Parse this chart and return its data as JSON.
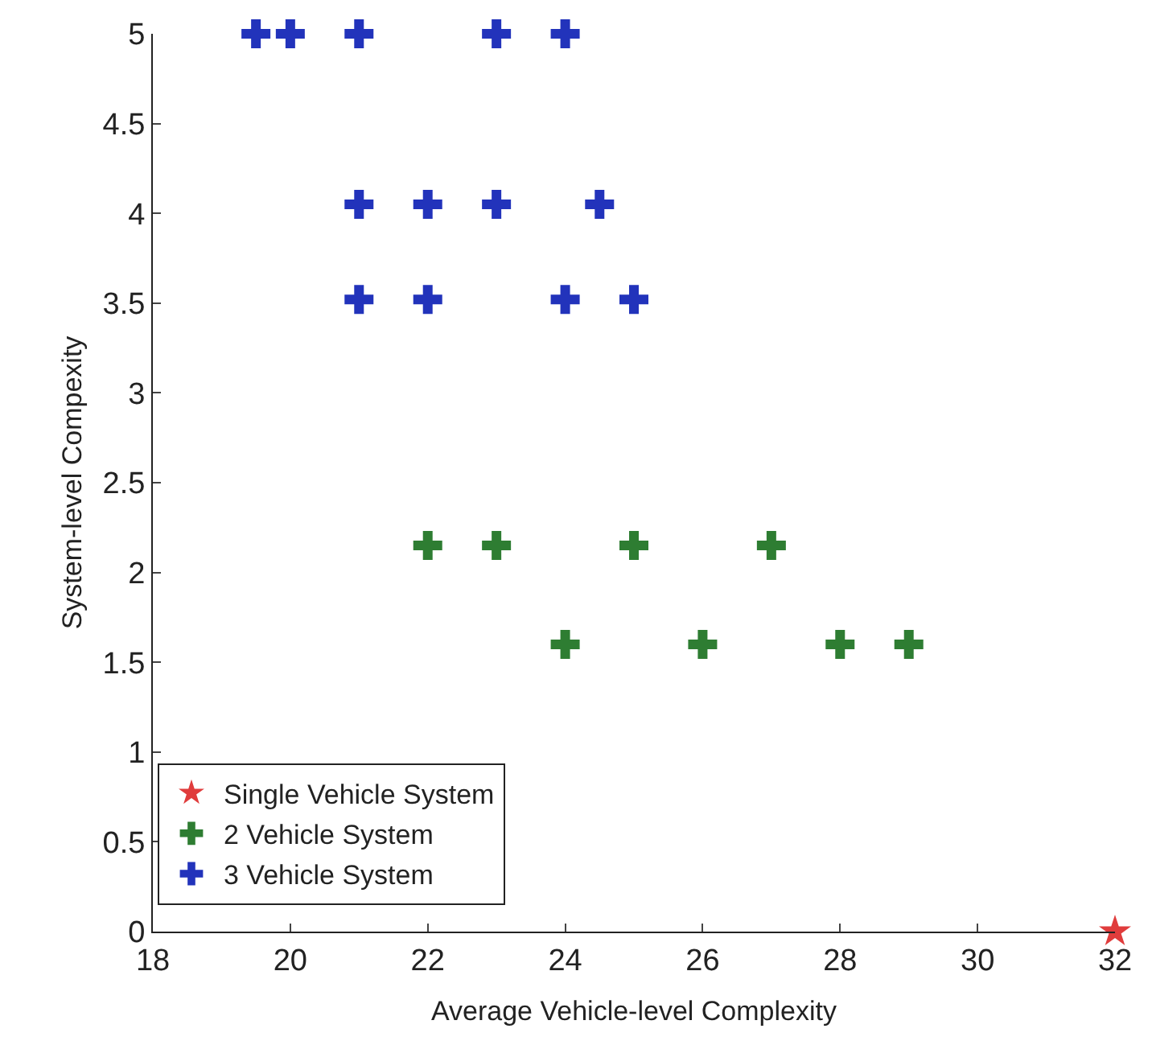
{
  "chart_data": {
    "type": "scatter",
    "xlabel": "Average Vehicle-level Complexity",
    "ylabel": "System-level Compexity",
    "xlim": [
      18,
      32
    ],
    "xticks": [
      18,
      20,
      22,
      24,
      26,
      28,
      30,
      32
    ],
    "ylim": [
      0,
      5
    ],
    "yticks": [
      0,
      0.5,
      1,
      1.5,
      2,
      2.5,
      3,
      3.5,
      4,
      4.5,
      5
    ],
    "legend": "bottom left",
    "series": [
      {
        "name": "Single Vehicle System",
        "color": "#e03c3c",
        "marker": "star",
        "x": [
          32
        ],
        "values": [
          0
        ]
      },
      {
        "name": "2 Vehicle System",
        "color": "#2e7d32",
        "marker": "cross",
        "x": [
          22,
          23,
          25,
          27,
          24,
          26,
          28,
          29
        ],
        "values": [
          2.15,
          2.15,
          2.15,
          2.15,
          1.6,
          1.6,
          1.6,
          1.6
        ]
      },
      {
        "name": "3 Vehicle System",
        "color": "#2233bb",
        "marker": "cross",
        "x": [
          19.5,
          20,
          21,
          23,
          24,
          21,
          22,
          23,
          24.5,
          21,
          22,
          24,
          25
        ],
        "values": [
          5,
          5,
          5,
          5,
          5,
          4.05,
          4.05,
          4.05,
          4.05,
          3.52,
          3.52,
          3.52,
          3.52
        ]
      }
    ]
  }
}
